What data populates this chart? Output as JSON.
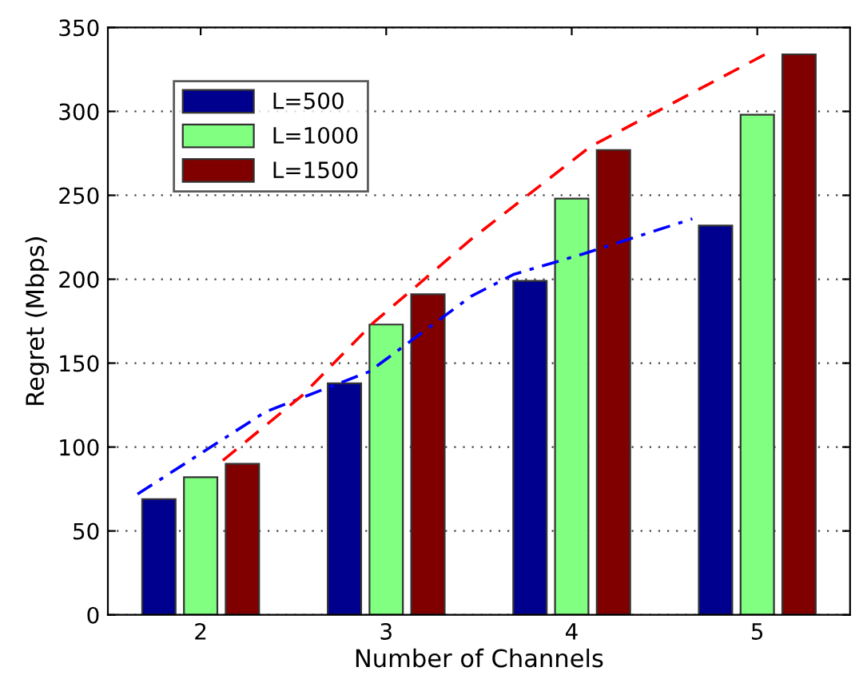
{
  "chart_data": {
    "type": "bar",
    "xlabel": "Number of Channels",
    "ylabel": "Regret (Mbps)",
    "x": [
      2,
      3,
      4,
      5
    ],
    "xlim": [
      1.5,
      5.5
    ],
    "xticks": [
      2,
      3,
      4,
      5
    ],
    "ylim": [
      0,
      350
    ],
    "yticks": [
      0,
      50,
      100,
      150,
      200,
      250,
      300,
      350
    ],
    "grid": "y",
    "legend": "top left",
    "series": [
      {
        "name": "L=500",
        "color": "#00008f",
        "values": [
          69,
          138,
          199,
          232
        ]
      },
      {
        "name": "L=1000",
        "color": "#80ff80",
        "values": [
          82,
          173,
          248,
          298
        ]
      },
      {
        "name": "L=1500",
        "color": "#800000",
        "values": [
          90,
          191,
          277,
          334
        ]
      },
      {
        "type": "line",
        "color": "#0000ff",
        "line_style": "dashdot",
        "x": [
          1.66,
          2.35,
          2.91,
          3.46,
          3.69,
          4.06,
          4.65
        ],
        "values": [
          72,
          121,
          145,
          190,
          203,
          215,
          236
        ]
      },
      {
        "type": "line",
        "color": "#ff0000",
        "line_style": "dashed",
        "x": [
          2.12,
          2.55,
          2.93,
          3.28,
          3.46,
          4.1,
          5.06
        ],
        "values": [
          92,
          131,
          174,
          207,
          224,
          279,
          335
        ]
      }
    ]
  }
}
